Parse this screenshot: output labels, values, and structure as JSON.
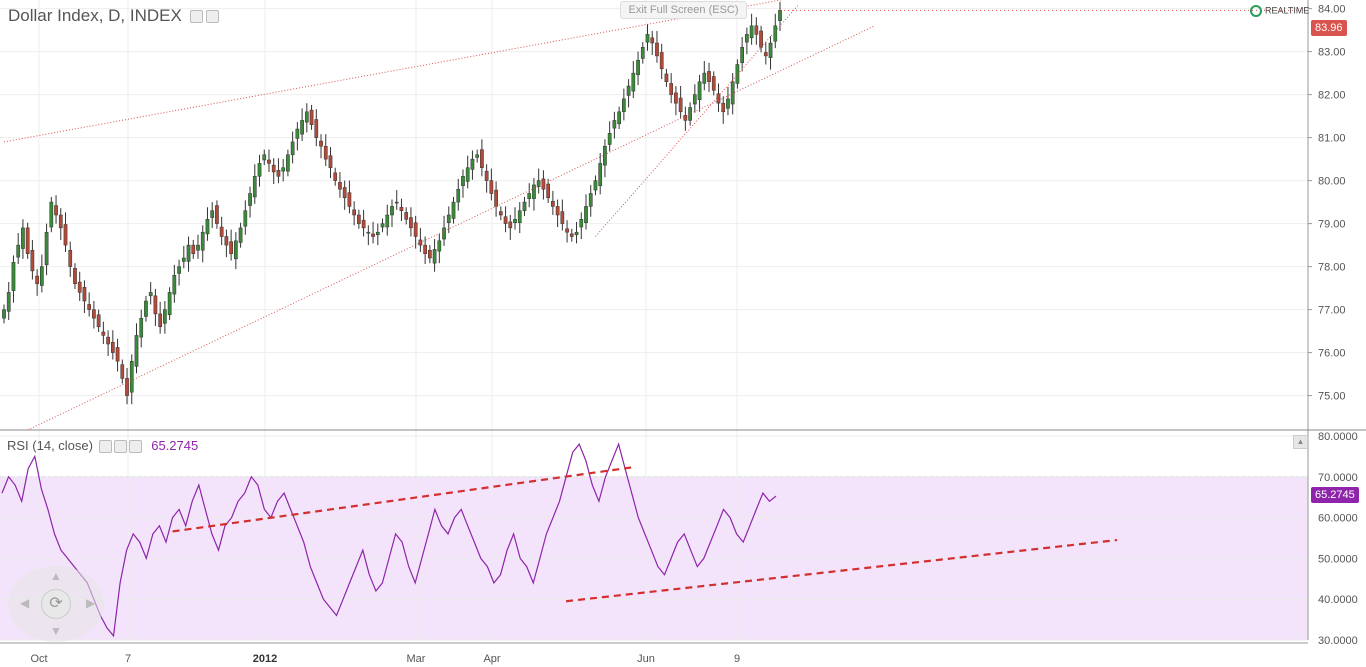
{
  "header": {
    "title": "Dollar Index, D, INDEX",
    "exit_fullscreen": "Exit Full Screen (ESC)",
    "realtime": "REALTIME"
  },
  "chart_data": [
    {
      "type": "candlestick",
      "title": "Dollar Index, D, INDEX",
      "ylim": [
        74.2,
        84.2
      ],
      "yticks": [
        "84.00",
        "83.00",
        "82.00",
        "81.00",
        "80.00",
        "79.00",
        "78.00",
        "77.00",
        "76.00",
        "75.00"
      ],
      "last_value": "83.96",
      "x_tick_labels": [
        "Oct",
        "7",
        "2012",
        "Mar",
        "Apr",
        "Jun",
        "9"
      ],
      "closes": [
        77.0,
        77.4,
        78.1,
        78.5,
        78.9,
        78.3,
        77.9,
        77.6,
        78.0,
        78.8,
        79.5,
        79.2,
        78.9,
        78.5,
        78.0,
        77.6,
        77.4,
        77.2,
        77.0,
        76.8,
        76.6,
        76.4,
        76.2,
        76.0,
        75.8,
        75.4,
        75.0,
        75.8,
        76.4,
        76.8,
        77.2,
        77.4,
        76.9,
        76.6,
        77.0,
        77.4,
        77.8,
        78.0,
        78.2,
        78.5,
        78.3,
        78.5,
        78.8,
        79.1,
        79.3,
        79.0,
        78.7,
        78.5,
        78.3,
        78.6,
        78.9,
        79.3,
        79.7,
        80.1,
        80.4,
        80.6,
        80.4,
        80.2,
        80.1,
        80.3,
        80.6,
        80.9,
        81.2,
        81.4,
        81.6,
        81.3,
        81.0,
        80.8,
        80.5,
        80.3,
        80.0,
        79.8,
        79.6,
        79.4,
        79.2,
        79.0,
        78.9,
        78.8,
        78.7,
        78.8,
        79.0,
        79.2,
        79.4,
        79.5,
        79.3,
        79.1,
        78.9,
        78.7,
        78.5,
        78.3,
        78.2,
        78.4,
        78.6,
        78.9,
        79.2,
        79.5,
        79.8,
        80.1,
        80.3,
        80.5,
        80.6,
        80.3,
        80.0,
        79.7,
        79.4,
        79.2,
        79.0,
        78.9,
        79.1,
        79.3,
        79.5,
        79.7,
        79.9,
        80.0,
        79.8,
        79.6,
        79.4,
        79.2,
        79.0,
        78.8,
        78.7,
        78.8,
        79.1,
        79.4,
        79.7,
        80.0,
        80.4,
        80.8,
        81.1,
        81.4,
        81.6,
        81.9,
        82.2,
        82.5,
        82.8,
        83.1,
        83.4,
        83.2,
        82.9,
        82.6,
        82.3,
        82.0,
        81.8,
        81.6,
        81.4,
        81.7,
        82.0,
        82.3,
        82.5,
        82.3,
        82.1,
        81.8,
        81.6,
        81.9,
        82.3,
        82.7,
        83.1,
        83.4,
        83.6,
        83.4,
        83.1,
        82.9,
        83.2,
        83.6,
        83.96
      ],
      "series": [
        {
          "name": "Dollar Index, D, INDEX",
          "values": []
        }
      ],
      "trendlines": [
        {
          "from": [
            0,
            80.9
          ],
          "to": [
            184,
            84.6
          ]
        },
        {
          "from": [
            5,
            74.2
          ],
          "to": [
            184,
            83.6
          ]
        },
        {
          "from": [
            125,
            78.7
          ],
          "to": [
            168,
            84.1
          ]
        }
      ]
    },
    {
      "type": "line",
      "title": "RSI (14, close)",
      "ylim": [
        30,
        80
      ],
      "yticks": [
        "80.0000",
        "70.0000",
        "60.0000",
        "50.0000",
        "40.0000",
        "30.0000"
      ],
      "band": [
        30,
        70
      ],
      "last_value": "65.2745",
      "series": [
        {
          "name": "RSI (14, close)",
          "values": [
            66,
            70,
            68,
            64,
            72,
            75,
            67,
            62,
            56,
            52,
            50,
            48,
            46,
            44,
            40,
            36,
            33,
            31,
            44,
            52,
            56,
            54,
            50,
            56,
            58,
            54,
            60,
            62,
            58,
            64,
            68,
            62,
            56,
            52,
            58,
            60,
            64,
            66,
            70,
            68,
            62,
            60,
            64,
            66,
            62,
            58,
            54,
            48,
            44,
            40,
            38,
            36,
            40,
            44,
            48,
            52,
            46,
            42,
            44,
            50,
            56,
            54,
            48,
            44,
            50,
            56,
            62,
            58,
            56,
            60,
            62,
            58,
            54,
            50,
            48,
            44,
            46,
            52,
            56,
            50,
            48,
            44,
            50,
            56,
            60,
            64,
            70,
            76,
            78,
            74,
            68,
            64,
            70,
            74,
            78,
            72,
            66,
            60,
            56,
            52,
            48,
            46,
            50,
            54,
            56,
            52,
            48,
            50,
            54,
            58,
            62,
            60,
            56,
            54,
            58,
            62,
            66,
            64,
            65.27
          ]
        }
      ],
      "trendlines": [
        {
          "from": [
            0,
            39.5
          ],
          "to": [
            84,
            54.5
          ]
        },
        {
          "from": [
            26,
            56.6
          ],
          "to": [
            58,
            72.3
          ]
        }
      ]
    }
  ],
  "time_axis": {
    "labels": [
      "Oct",
      "7",
      "2012",
      "Mar",
      "Apr",
      "Jun",
      "9"
    ]
  },
  "rsi_indicator": {
    "label": "RSI (14, close)",
    "value": "65.2745"
  },
  "colors": {
    "up": "#3a8a3a",
    "down": "#b24a3a",
    "rsi": "#8e24aa",
    "band": "#f3e4fb",
    "trend": "#d32f2f"
  }
}
